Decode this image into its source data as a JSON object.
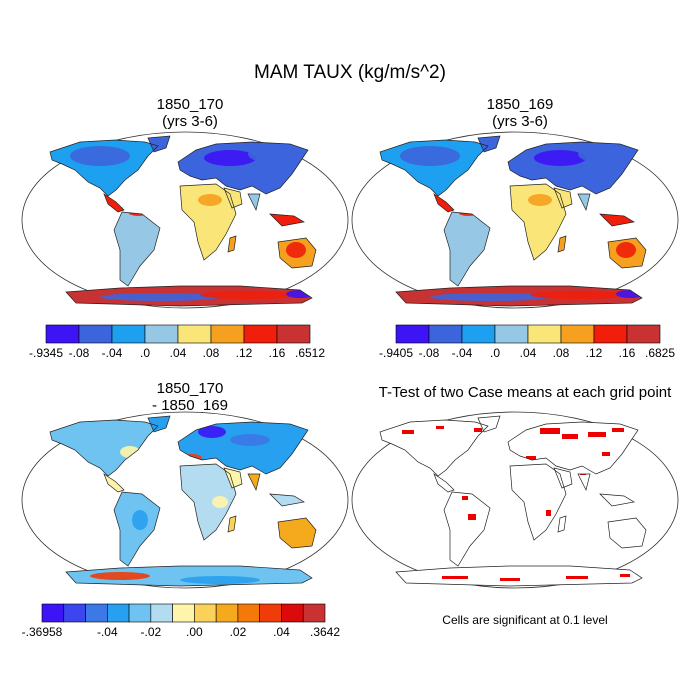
{
  "title": "MAM TAUX (kg/m/s^2)",
  "panels": [
    {
      "id": "case1",
      "title_line1": "1850_170",
      "title_line2": "(yrs 3-6)",
      "colorbar": {
        "colors": [
          "#3c14f5",
          "#3c64dc",
          "#1ea0f0",
          "#96c8e6",
          "#fae678",
          "#f5a01e",
          "#f01e0a",
          "#c83232"
        ],
        "labels": [
          "-.9345",
          "-.08",
          "-.04",
          ".0",
          ".04",
          ".08",
          ".12",
          ".16",
          ".6512"
        ]
      }
    },
    {
      "id": "case2",
      "title_line1": "1850_169",
      "title_line2": "(yrs 3-6)",
      "colorbar": {
        "colors": [
          "#3c14f5",
          "#3c64dc",
          "#1ea0f0",
          "#96c8e6",
          "#fae678",
          "#f5a01e",
          "#f01e0a",
          "#c83232"
        ],
        "labels": [
          "-.9405",
          "-.08",
          "-.04",
          ".0",
          ".04",
          ".08",
          ".12",
          ".16",
          ".6825"
        ]
      }
    },
    {
      "id": "diff",
      "title_line1": "1850_170",
      "title_line2": "- 1850_169",
      "colorbar": {
        "colors": [
          "#3c14f5",
          "#3c46f0",
          "#3c78e6",
          "#28a0f0",
          "#6ec3f0",
          "#b4dcf0",
          "#fff5aa",
          "#fad25a",
          "#f5aa1e",
          "#f5780a",
          "#f03c0a",
          "#dc0a0a",
          "#c83232"
        ],
        "labels": [
          "-.36958",
          "-.04",
          "-.02",
          ".00",
          ".02",
          ".04",
          ".3642"
        ]
      }
    },
    {
      "id": "ttest",
      "title_line1": "T-Test of two Case means at each grid point",
      "note": "Cells are significant at 0.1 level",
      "sig_color": "#ee0000"
    }
  ]
}
